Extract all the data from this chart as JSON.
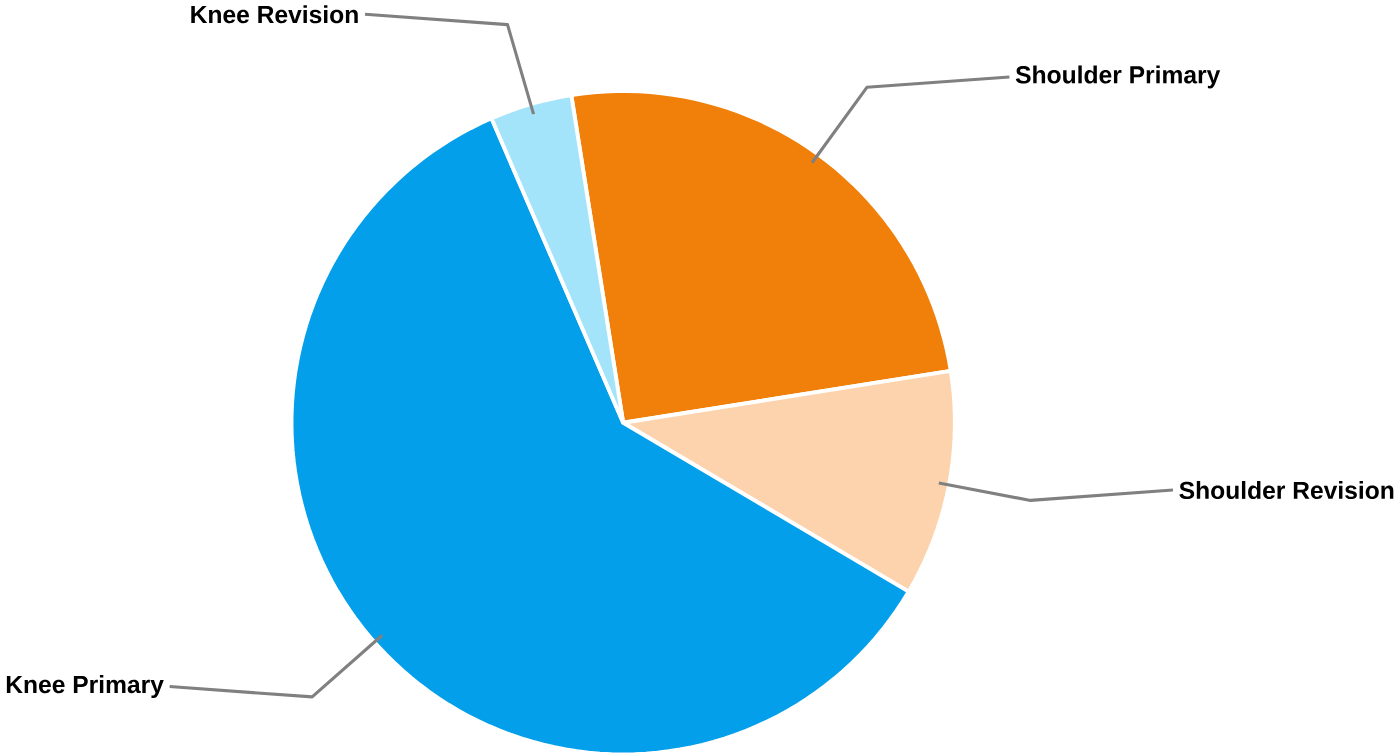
{
  "chart_data": {
    "type": "pie",
    "categories": [
      "Shoulder Primary",
      "Shoulder Revision",
      "Knee Primary",
      "Knee Revision"
    ],
    "values": [
      25,
      11,
      60,
      4
    ],
    "colors": [
      "#f0800a",
      "#fcd3ac",
      "#039fea",
      "#a3e4fb"
    ]
  }
}
